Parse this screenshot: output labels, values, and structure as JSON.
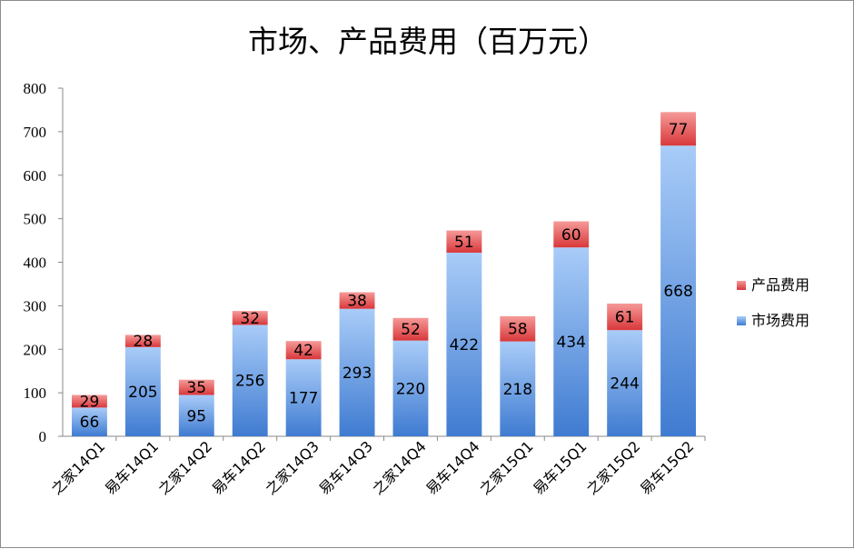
{
  "chart_data": {
    "type": "bar",
    "stacked": true,
    "title": "市场、产品费用（百万元）",
    "categories": [
      "之家14Q1",
      "易车14Q1",
      "之家14Q2",
      "易车14Q2",
      "之家14Q3",
      "易车14Q3",
      "之家14Q4",
      "易车14Q4",
      "之家15Q1",
      "易车15Q1",
      "之家15Q2",
      "易车15Q2"
    ],
    "series": [
      {
        "name": "市场费用",
        "values": [
          66,
          205,
          95,
          256,
          177,
          293,
          220,
          422,
          218,
          434,
          244,
          668
        ],
        "color": "#5b8fd6"
      },
      {
        "name": "产品费用",
        "values": [
          29,
          28,
          35,
          32,
          42,
          38,
          52,
          51,
          58,
          60,
          61,
          77
        ],
        "color": "#e8494b"
      }
    ],
    "ylim": [
      0,
      800
    ],
    "yticks": [
      0,
      100,
      200,
      300,
      400,
      500,
      600,
      700,
      800
    ],
    "xlabel": "",
    "ylabel": "",
    "legend": "right",
    "grid": false
  }
}
